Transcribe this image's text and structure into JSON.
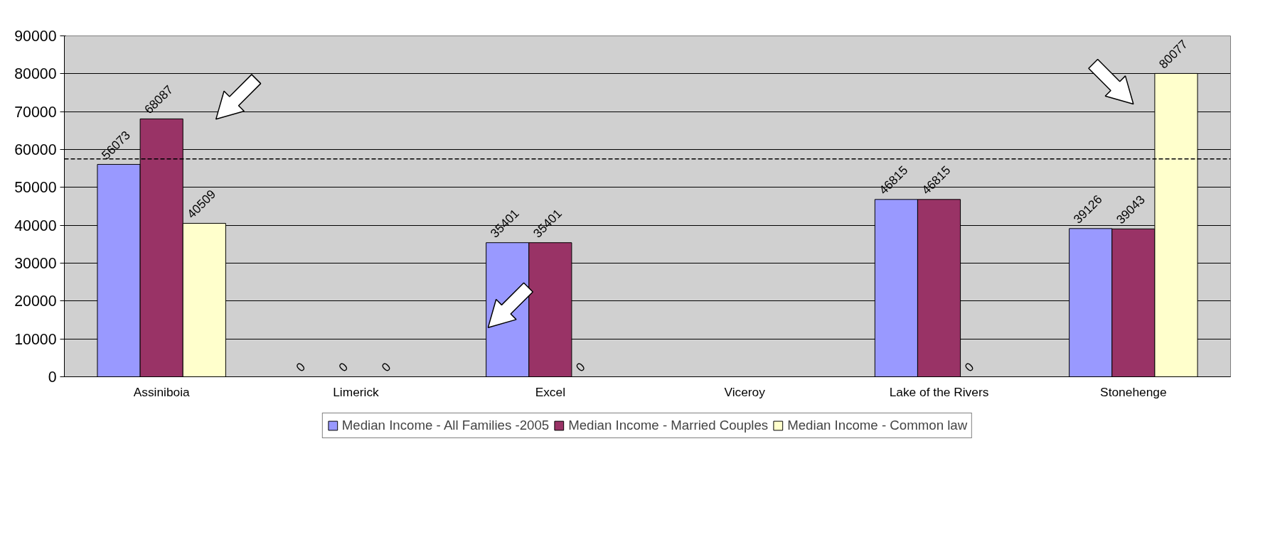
{
  "chart_data": {
    "type": "bar",
    "categories": [
      "Assiniboia",
      "Limerick",
      "Excel",
      "Viceroy",
      "Lake of the Rivers",
      "Stonehenge"
    ],
    "series": [
      {
        "name": "Median Income - All Families -2005",
        "color": "#9999ff",
        "values": [
          56073,
          0,
          35401,
          null,
          46815,
          39126
        ]
      },
      {
        "name": "Median Income - Married Couples",
        "color": "#993366",
        "values": [
          68087,
          0,
          35401,
          null,
          46815,
          39043
        ]
      },
      {
        "name": "Median Income - Common law",
        "color": "#ffffcc",
        "values": [
          40509,
          0,
          0,
          null,
          0,
          80077
        ]
      }
    ],
    "ylim": [
      0,
      90000
    ],
    "yticks": [
      0,
      10000,
      20000,
      30000,
      40000,
      50000,
      60000,
      70000,
      80000,
      90000
    ],
    "grid": "y",
    "legend": "bottom",
    "data_labels": true,
    "ref_lines": [
      {
        "axis": "y",
        "value": 57500,
        "line_style": "dashed",
        "color": "#000000"
      }
    ]
  }
}
